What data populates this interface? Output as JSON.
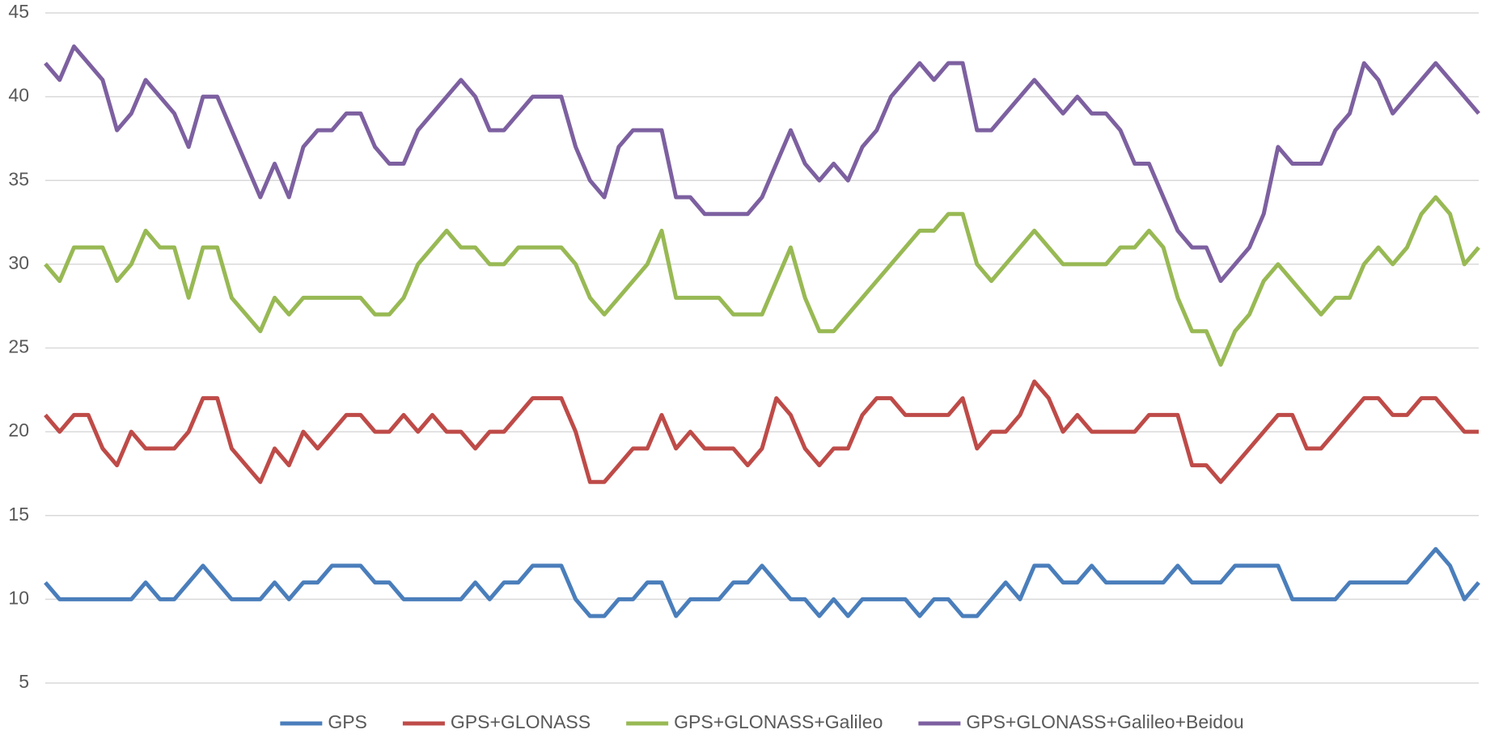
{
  "chart_data": {
    "type": "line",
    "ylim": [
      5,
      45
    ],
    "yticks": [
      5,
      10,
      15,
      20,
      25,
      30,
      35,
      40,
      45
    ],
    "grid": true,
    "legend": "bottom",
    "series": [
      {
        "name": "GPS",
        "color": "#4a7ebb",
        "values": [
          11,
          10,
          10,
          10,
          10,
          10,
          10,
          11,
          10,
          10,
          11,
          12,
          11,
          10,
          10,
          10,
          11,
          10,
          11,
          11,
          12,
          12,
          12,
          11,
          11,
          10,
          10,
          10,
          10,
          10,
          11,
          10,
          11,
          11,
          12,
          12,
          12,
          10,
          9,
          9,
          10,
          10,
          11,
          11,
          9,
          10,
          10,
          10,
          11,
          11,
          12,
          11,
          10,
          10,
          9,
          10,
          9,
          10,
          10,
          10,
          10,
          9,
          10,
          10,
          9,
          9,
          10,
          11,
          10,
          12,
          12,
          11,
          11,
          12,
          11,
          11,
          11,
          11,
          11,
          12,
          11,
          11,
          11,
          12,
          12,
          12,
          12,
          10,
          10,
          10,
          10,
          11,
          11,
          11,
          11,
          11,
          12,
          13,
          12,
          10,
          11
        ]
      },
      {
        "name": "GPS+GLONASS",
        "color": "#be4b48",
        "values": [
          21,
          20,
          21,
          21,
          19,
          18,
          20,
          19,
          19,
          19,
          20,
          22,
          22,
          19,
          18,
          17,
          19,
          18,
          20,
          19,
          20,
          21,
          21,
          20,
          20,
          21,
          20,
          21,
          20,
          20,
          19,
          20,
          20,
          21,
          22,
          22,
          22,
          20,
          17,
          17,
          18,
          19,
          19,
          21,
          19,
          20,
          19,
          19,
          19,
          18,
          19,
          22,
          21,
          19,
          18,
          19,
          19,
          21,
          22,
          22,
          21,
          21,
          21,
          21,
          22,
          19,
          20,
          20,
          21,
          23,
          22,
          20,
          21,
          20,
          20,
          20,
          20,
          21,
          21,
          21,
          18,
          18,
          17,
          18,
          19,
          20,
          21,
          21,
          19,
          19,
          20,
          21,
          22,
          22,
          21,
          21,
          22,
          22,
          21,
          20,
          20
        ]
      },
      {
        "name": "GPS+GLONASS+Galileo",
        "color": "#98b954",
        "values": [
          30,
          29,
          31,
          31,
          31,
          29,
          30,
          32,
          31,
          31,
          28,
          31,
          31,
          28,
          27,
          26,
          28,
          27,
          28,
          28,
          28,
          28,
          28,
          27,
          27,
          28,
          30,
          31,
          32,
          31,
          31,
          30,
          30,
          31,
          31,
          31,
          31,
          30,
          28,
          27,
          28,
          29,
          30,
          32,
          28,
          28,
          28,
          28,
          27,
          27,
          27,
          29,
          31,
          28,
          26,
          26,
          27,
          28,
          29,
          30,
          31,
          32,
          32,
          33,
          33,
          30,
          29,
          30,
          31,
          32,
          31,
          30,
          30,
          30,
          30,
          31,
          31,
          32,
          31,
          28,
          26,
          26,
          24,
          26,
          27,
          29,
          30,
          29,
          28,
          27,
          28,
          28,
          30,
          31,
          30,
          31,
          33,
          34,
          33,
          30,
          31
        ]
      },
      {
        "name": "GPS+GLONASS+Galileo+Beidou",
        "color": "#7d60a0",
        "values": [
          42,
          41,
          43,
          42,
          41,
          38,
          39,
          41,
          40,
          39,
          37,
          40,
          40,
          38,
          36,
          34,
          36,
          34,
          37,
          38,
          38,
          39,
          39,
          37,
          36,
          36,
          38,
          39,
          40,
          41,
          40,
          38,
          38,
          39,
          40,
          40,
          40,
          37,
          35,
          34,
          37,
          38,
          38,
          38,
          34,
          34,
          33,
          33,
          33,
          33,
          34,
          36,
          38,
          36,
          35,
          36,
          35,
          37,
          38,
          40,
          41,
          42,
          41,
          42,
          42,
          38,
          38,
          39,
          40,
          41,
          40,
          39,
          40,
          39,
          39,
          38,
          36,
          36,
          34,
          32,
          31,
          31,
          29,
          30,
          31,
          33,
          37,
          36,
          36,
          36,
          38,
          39,
          42,
          41,
          39,
          40,
          41,
          42,
          41,
          40,
          39
        ]
      }
    ]
  }
}
